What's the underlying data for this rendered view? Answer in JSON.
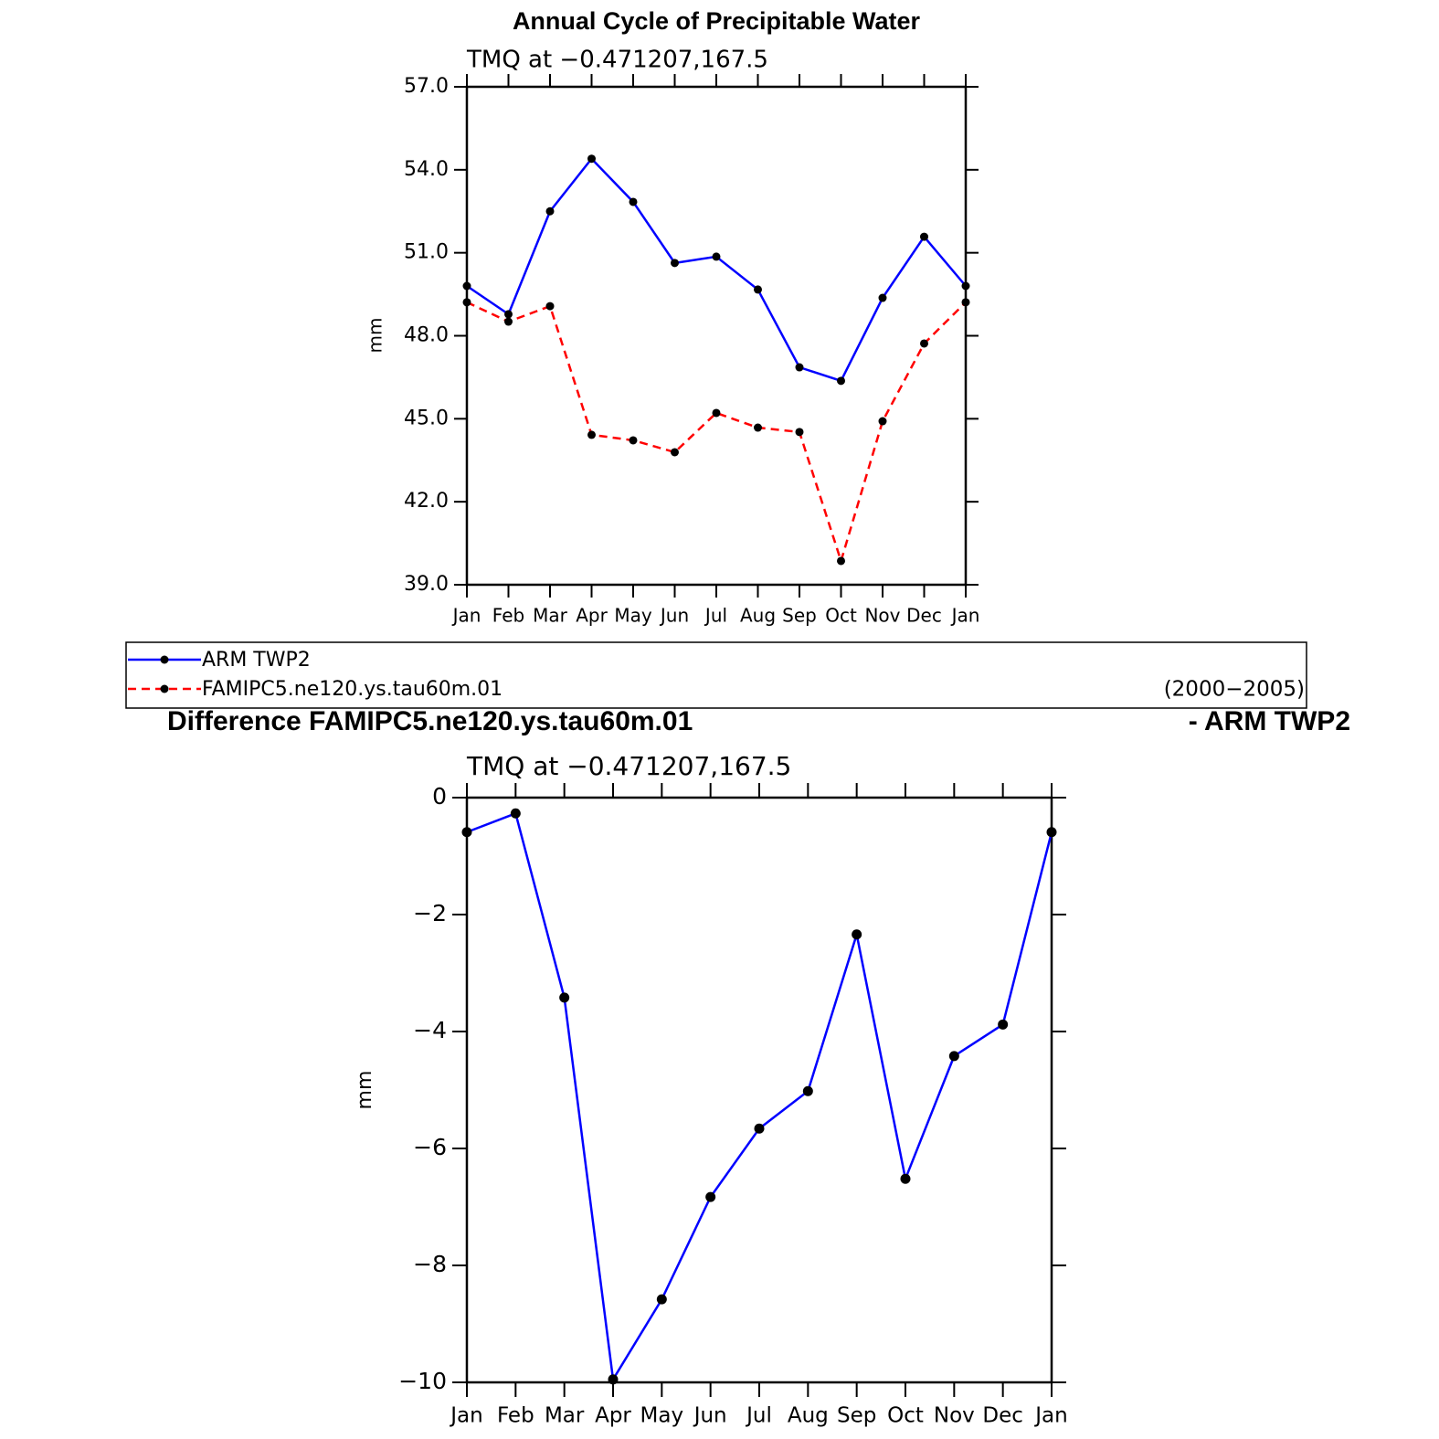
{
  "chart_data": [
    {
      "type": "line",
      "title": "Annual Cycle of Precipitable Water",
      "subtitle": "TMQ  at  −0.471207,167.5",
      "ylabel": "mm",
      "categories": [
        "Jan",
        "Feb",
        "Mar",
        "Apr",
        "May",
        "Jun",
        "Jul",
        "Aug",
        "Sep",
        "Oct",
        "Nov",
        "Dec",
        "Jan"
      ],
      "series": [
        {
          "name": "ARM TWP2",
          "color": "#0000ff",
          "line_style": "solid",
          "values": [
            49.8,
            48.78,
            52.5,
            54.4,
            52.84,
            50.63,
            50.86,
            49.67,
            46.86,
            46.37,
            49.37,
            51.58,
            49.8
          ]
        },
        {
          "name": "FAMIPC5.ne120.ys.tau60m.01",
          "color": "#ff0000",
          "line_style": "dashed",
          "values": [
            49.21,
            48.51,
            49.07,
            44.42,
            44.22,
            43.79,
            45.21,
            44.68,
            44.52,
            39.86,
            44.91,
            47.72,
            49.21
          ]
        }
      ],
      "annotation": "(2000−2005)",
      "ylim": [
        39,
        57
      ],
      "yticks": [
        {
          "value": 39,
          "label": "39.0"
        },
        {
          "value": 42,
          "label": "42.0"
        },
        {
          "value": 45,
          "label": "45.0"
        },
        {
          "value": 48,
          "label": "48.0"
        },
        {
          "value": 51,
          "label": "51.0"
        },
        {
          "value": 54,
          "label": "54.0"
        },
        {
          "value": 57,
          "label": "57.0"
        }
      ]
    },
    {
      "type": "line",
      "title": "Difference FAMIPC5.ne120.ys.tau60m.01",
      "title_right": "- ARM TWP2",
      "subtitle": "TMQ  at  −0.471207,167.5",
      "ylabel": "mm",
      "categories": [
        "Jan",
        "Feb",
        "Mar",
        "Apr",
        "May",
        "Jun",
        "Jul",
        "Aug",
        "Sep",
        "Oct",
        "Nov",
        "Dec",
        "Jan"
      ],
      "series": [
        {
          "color": "#0000ff",
          "line_style": "solid",
          "values": [
            -0.59,
            -0.27,
            -3.42,
            -9.95,
            -8.58,
            -6.83,
            -5.66,
            -5.02,
            -2.34,
            -6.52,
            -4.42,
            -3.88,
            -0.59
          ]
        }
      ],
      "ylim": [
        -10,
        0
      ],
      "yticks": [
        {
          "value": -10,
          "label": "−10"
        },
        {
          "value": -8,
          "label": "−8"
        },
        {
          "value": -6,
          "label": "−6"
        },
        {
          "value": -4,
          "label": "−4"
        },
        {
          "value": -2,
          "label": "−2"
        },
        0
      ]
    }
  ]
}
